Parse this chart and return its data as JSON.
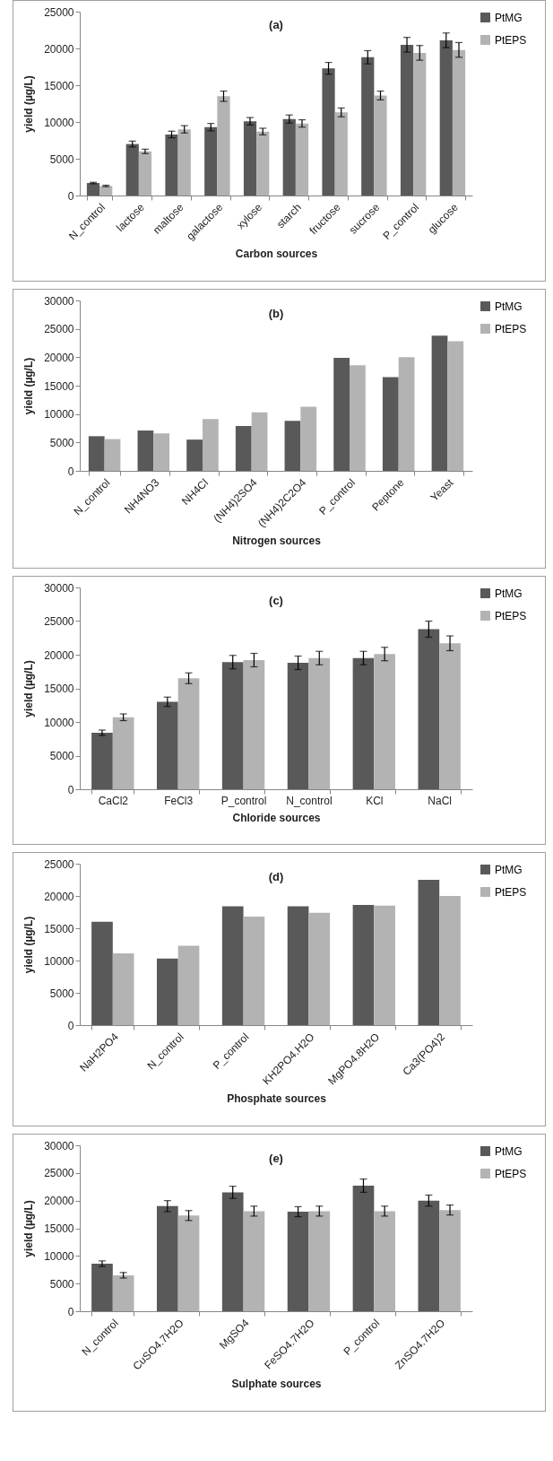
{
  "chart_data": [
    {
      "type": "bar",
      "title": "(a)",
      "xlabel": "Carbon sources",
      "ylabel": "yield (µg/L)",
      "categories": [
        "N_control",
        "lactose",
        "maltose",
        "galactose",
        "xylose",
        "starch",
        "fructose",
        "sucrose",
        "P_control",
        "glucose"
      ],
      "ylim": [
        0,
        25000
      ],
      "yticks": [
        0,
        5000,
        10000,
        15000,
        20000,
        25000
      ],
      "legend": "right",
      "series": [
        {
          "name": "PtMG",
          "color": "#595959",
          "values": [
            1700,
            7000,
            8300,
            9300,
            10100,
            10400,
            17300,
            18800,
            20500,
            21100
          ],
          "errors": [
            100,
            400,
            450,
            500,
            500,
            550,
            800,
            900,
            1000,
            1000
          ]
        },
        {
          "name": "PtEPS",
          "color": "#b3b3b3",
          "values": [
            1300,
            6000,
            9000,
            13500,
            8700,
            9800,
            11300,
            13600,
            19400,
            19800
          ],
          "errors": [
            100,
            300,
            500,
            700,
            450,
            500,
            600,
            600,
            1000,
            1000
          ]
        }
      ]
    },
    {
      "type": "bar",
      "title": "(b)",
      "xlabel": "Nitrogen sources",
      "ylabel": "yield (µg/L)",
      "categories": [
        "N_control",
        "NH4NO3",
        "NH4Cl",
        "(NH4)2SO4",
        "(NH4)2C2O4",
        "P_control",
        "Peptone",
        "Yeast"
      ],
      "ylim": [
        0,
        30000
      ],
      "yticks": [
        0,
        5000,
        10000,
        15000,
        20000,
        25000,
        30000
      ],
      "legend": "right",
      "series": [
        {
          "name": "PtMG",
          "color": "#595959",
          "values": [
            6100,
            7100,
            5500,
            7900,
            8800,
            19900,
            16500,
            23800
          ]
        },
        {
          "name": "PtEPS",
          "color": "#b3b3b3",
          "values": [
            5600,
            6600,
            9100,
            10300,
            11300,
            18600,
            20000,
            22800
          ]
        }
      ]
    },
    {
      "type": "bar",
      "title": "(c)",
      "xlabel": "Chloride sources",
      "ylabel": "yield (µg/L)",
      "categories": [
        "CaCl2",
        "FeCl3",
        "P_control",
        "N_control",
        "KCl",
        "NaCl"
      ],
      "ylim": [
        0,
        30000
      ],
      "yticks": [
        0,
        5000,
        10000,
        15000,
        20000,
        25000,
        30000
      ],
      "legend": "right",
      "series": [
        {
          "name": "PtMG",
          "color": "#595959",
          "values": [
            8400,
            13000,
            18900,
            18800,
            19500,
            23800
          ],
          "errors": [
            400,
            700,
            1000,
            1000,
            1000,
            1200
          ]
        },
        {
          "name": "PtEPS",
          "color": "#b3b3b3",
          "values": [
            10700,
            16500,
            19200,
            19500,
            20100,
            21700
          ],
          "errors": [
            500,
            800,
            1000,
            1000,
            1000,
            1100
          ]
        }
      ]
    },
    {
      "type": "bar",
      "title": "(d)",
      "xlabel": "Phosphate sources",
      "ylabel": "yield (µg/L)",
      "categories": [
        "NaH2PO4",
        "N_control",
        "P_control",
        "KH2PO4.H2O",
        "MgPO4.8H2O",
        "Ca3(PO4)2"
      ],
      "ylim": [
        0,
        25000
      ],
      "yticks": [
        0,
        5000,
        10000,
        15000,
        20000,
        25000
      ],
      "legend": "right",
      "series": [
        {
          "name": "PtMG",
          "color": "#595959",
          "values": [
            16000,
            10300,
            18400,
            18400,
            18600,
            22500
          ]
        },
        {
          "name": "PtEPS",
          "color": "#b3b3b3",
          "values": [
            11100,
            12300,
            16800,
            17400,
            18500,
            20000
          ]
        }
      ]
    },
    {
      "type": "bar",
      "title": "(e)",
      "xlabel": "Sulphate sources",
      "ylabel": "yield (µg/L)",
      "categories": [
        "N_control",
        "CuSO4.7H2O",
        "MgSO4",
        "FeSO4.7H2O",
        "P_control",
        "ZnSO4.7H2O"
      ],
      "ylim": [
        0,
        30000
      ],
      "yticks": [
        0,
        5000,
        10000,
        15000,
        20000,
        25000,
        30000
      ],
      "legend": "right",
      "series": [
        {
          "name": "PtMG",
          "color": "#595959",
          "values": [
            8600,
            19000,
            21500,
            18000,
            22700,
            20000
          ],
          "errors": [
            500,
            1000,
            1100,
            900,
            1200,
            1000
          ]
        },
        {
          "name": "PtEPS",
          "color": "#b3b3b3",
          "values": [
            6500,
            17300,
            18100,
            18100,
            18100,
            18300
          ],
          "errors": [
            500,
            900,
            900,
            900,
            900,
            900
          ]
        }
      ]
    }
  ]
}
